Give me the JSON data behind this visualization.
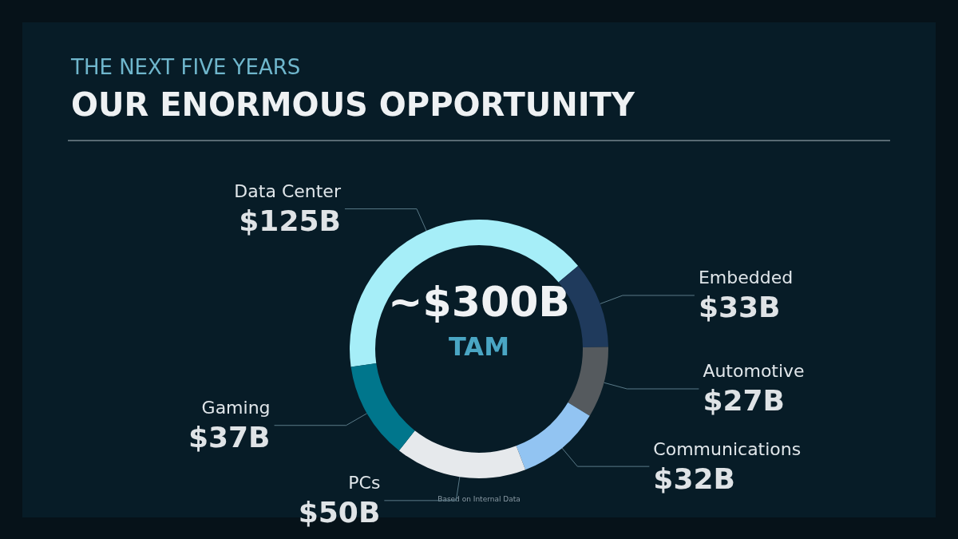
{
  "chart_data": {
    "type": "donut",
    "title": "OUR ENORMOUS OPPORTUNITY",
    "subtitle": "THE NEXT FIVE YEARS",
    "categories": [
      "Data Center",
      "Embedded",
      "Automotive",
      "Communications",
      "PCs",
      "Gaming"
    ],
    "values": [
      125,
      33,
      27,
      32,
      50,
      37
    ],
    "value_labels": [
      "$125B",
      "$33B",
      "$27B",
      "$32B",
      "$50B",
      "$37B"
    ],
    "colors": [
      "#a6eef8",
      "#1f3a5c",
      "#555a5e",
      "#92c4f2",
      "#e6e9ec",
      "#00768c"
    ],
    "annotations": [
      "~$300B",
      "TAM",
      "Based on Internal Data"
    ],
    "legend": false
  }
}
